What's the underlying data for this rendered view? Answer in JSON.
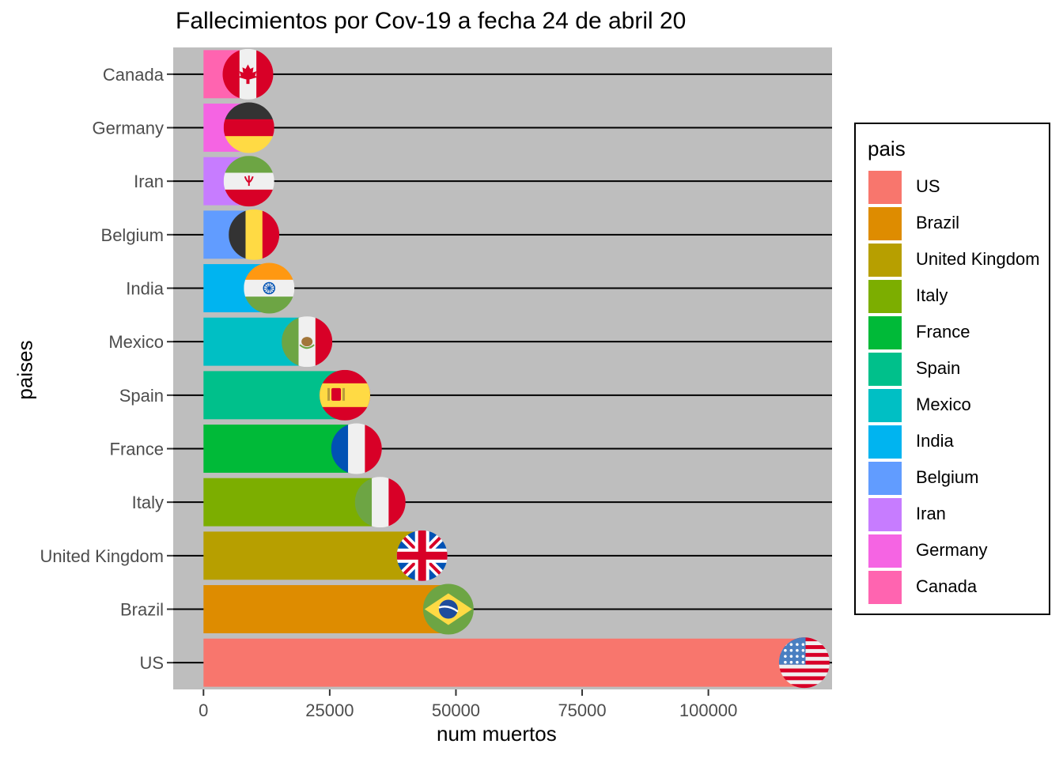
{
  "chart_data": {
    "type": "bar",
    "orientation": "horizontal",
    "title": "Fallecimientos por Cov-19 a fecha 24 de abril 20",
    "xlabel": "num muertos",
    "ylabel": "paises",
    "xlim": [
      -6000,
      124500
    ],
    "x_ticks": [
      0,
      25000,
      50000,
      75000,
      100000
    ],
    "x_tick_labels": [
      "0",
      "25000",
      "50000",
      "75000",
      "100000"
    ],
    "panel_background": "#BEBEBE",
    "grid": "horizontal major lines (black)",
    "legend_position": "right",
    "legend_title": "pais",
    "categories": [
      "US",
      "Brazil",
      "United Kingdom",
      "Italy",
      "France",
      "Spain",
      "Mexico",
      "India",
      "Belgium",
      "Iran",
      "Germany",
      "Canada"
    ],
    "values": [
      119000,
      48500,
      43300,
      35000,
      30300,
      28000,
      20500,
      13000,
      10000,
      9000,
      9000,
      8800
    ],
    "colors": [
      "#F8766D",
      "#DE8C00",
      "#B79F00",
      "#7CAE00",
      "#00BA38",
      "#00C08B",
      "#00BFC4",
      "#00B4F0",
      "#619CFF",
      "#C77CFF",
      "#F564E3",
      "#FF64B0"
    ],
    "flag_icons": [
      "usa-flag-icon",
      "brazil-flag-icon",
      "uk-flag-icon",
      "italy-flag-icon",
      "france-flag-icon",
      "spain-flag-icon",
      "mexico-flag-icon",
      "india-flag-icon",
      "belgium-flag-icon",
      "iran-flag-icon",
      "germany-flag-icon",
      "canada-flag-icon"
    ]
  }
}
